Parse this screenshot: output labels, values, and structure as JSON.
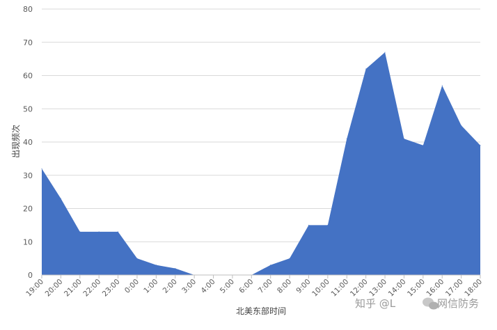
{
  "chart_data": {
    "type": "area",
    "title": "",
    "xlabel": "北美东部时间",
    "ylabel": "出现频次",
    "ylim": [
      0,
      80
    ],
    "yticks": [
      0,
      10,
      20,
      30,
      40,
      50,
      60,
      70,
      80
    ],
    "grid": true,
    "legend": "none",
    "fill_color": "#4472C4",
    "categories": [
      "19:00",
      "20:00",
      "21:00",
      "22:00",
      "23:00",
      "0:00",
      "1:00",
      "2:00",
      "3:00",
      "4:00",
      "5:00",
      "6:00",
      "7:00",
      "8:00",
      "9:00",
      "10:00",
      "11:00",
      "12:00",
      "13:00",
      "14:00",
      "15:00",
      "16:00",
      "17:00",
      "18:00"
    ],
    "values": [
      32,
      23,
      13,
      13,
      13,
      5,
      3,
      2,
      0,
      0,
      0,
      0,
      3,
      5,
      15,
      15,
      41,
      62,
      67,
      41,
      39,
      57,
      45,
      39
    ]
  },
  "watermark": {
    "text": "知乎 @L",
    "brand": "网信防务"
  }
}
